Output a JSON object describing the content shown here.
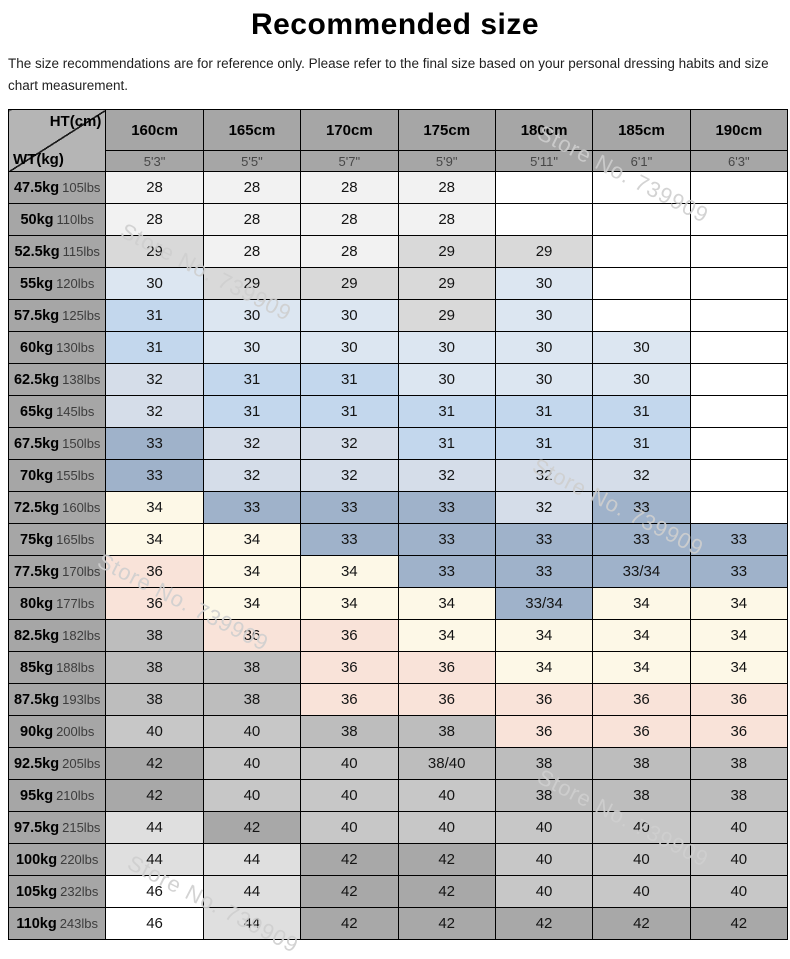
{
  "page": {
    "title": "Recommended size",
    "disclaimer": "The size recommendations are for reference only. Please refer to the final size based on your personal dressing habits and size chart measurement.",
    "watermark_text": "Store No. 739909"
  },
  "chart_data": {
    "type": "table",
    "title": "Recommended size",
    "corner": {
      "height_label": "HT(cm)",
      "weight_label": "WT(kg)"
    },
    "height_columns": [
      {
        "cm": "160cm",
        "ft": "5'3\""
      },
      {
        "cm": "165cm",
        "ft": "5'5\""
      },
      {
        "cm": "170cm",
        "ft": "5'7\""
      },
      {
        "cm": "175cm",
        "ft": "5'9\""
      },
      {
        "cm": "180cm",
        "ft": "5'11\""
      },
      {
        "cm": "185cm",
        "ft": "6'1\""
      },
      {
        "cm": "190cm",
        "ft": "6'3\""
      }
    ],
    "rows": [
      {
        "kg": "47.5kg",
        "lbs": "105lbs",
        "sizes": [
          "28",
          "28",
          "28",
          "28",
          "",
          "",
          ""
        ]
      },
      {
        "kg": "50kg",
        "lbs": "110lbs",
        "sizes": [
          "28",
          "28",
          "28",
          "28",
          "",
          "",
          ""
        ]
      },
      {
        "kg": "52.5kg",
        "lbs": "115lbs",
        "sizes": [
          "29",
          "28",
          "28",
          "29",
          "29",
          "",
          ""
        ]
      },
      {
        "kg": "55kg",
        "lbs": "120lbs",
        "sizes": [
          "30",
          "29",
          "29",
          "29",
          "30",
          "",
          ""
        ]
      },
      {
        "kg": "57.5kg",
        "lbs": "125lbs",
        "sizes": [
          "31",
          "30",
          "30",
          "29",
          "30",
          "",
          ""
        ]
      },
      {
        "kg": "60kg",
        "lbs": "130lbs",
        "sizes": [
          "31",
          "30",
          "30",
          "30",
          "30",
          "30",
          ""
        ]
      },
      {
        "kg": "62.5kg",
        "lbs": "138lbs",
        "sizes": [
          "32",
          "31",
          "31",
          "30",
          "30",
          "30",
          ""
        ]
      },
      {
        "kg": "65kg",
        "lbs": "145lbs",
        "sizes": [
          "32",
          "31",
          "31",
          "31",
          "31",
          "31",
          ""
        ]
      },
      {
        "kg": "67.5kg",
        "lbs": "150lbs",
        "sizes": [
          "33",
          "32",
          "32",
          "31",
          "31",
          "31",
          ""
        ]
      },
      {
        "kg": "70kg",
        "lbs": "155lbs",
        "sizes": [
          "33",
          "32",
          "32",
          "32",
          "32",
          "32",
          ""
        ]
      },
      {
        "kg": "72.5kg",
        "lbs": "160lbs",
        "sizes": [
          "34",
          "33",
          "33",
          "33",
          "32",
          "33",
          ""
        ]
      },
      {
        "kg": "75kg",
        "lbs": "165lbs",
        "sizes": [
          "34",
          "34",
          "33",
          "33",
          "33",
          "33",
          "33"
        ]
      },
      {
        "kg": "77.5kg",
        "lbs": "170lbs",
        "sizes": [
          "36",
          "34",
          "34",
          "33",
          "33",
          "33/34",
          "33"
        ]
      },
      {
        "kg": "80kg",
        "lbs": "177lbs",
        "sizes": [
          "36",
          "34",
          "34",
          "34",
          "33/34",
          "34",
          "34"
        ]
      },
      {
        "kg": "82.5kg",
        "lbs": "182lbs",
        "sizes": [
          "38",
          "36",
          "36",
          "34",
          "34",
          "34",
          "34"
        ]
      },
      {
        "kg": "85kg",
        "lbs": "188lbs",
        "sizes": [
          "38",
          "38",
          "36",
          "36",
          "34",
          "34",
          "34"
        ]
      },
      {
        "kg": "87.5kg",
        "lbs": "193lbs",
        "sizes": [
          "38",
          "38",
          "36",
          "36",
          "36",
          "36",
          "36"
        ]
      },
      {
        "kg": "90kg",
        "lbs": "200lbs",
        "sizes": [
          "40",
          "40",
          "38",
          "38",
          "36",
          "36",
          "36"
        ]
      },
      {
        "kg": "92.5kg",
        "lbs": "205lbs",
        "sizes": [
          "42",
          "40",
          "40",
          "38/40",
          "38",
          "38",
          "38"
        ]
      },
      {
        "kg": "95kg",
        "lbs": "210lbs",
        "sizes": [
          "42",
          "40",
          "40",
          "40",
          "38",
          "38",
          "38"
        ]
      },
      {
        "kg": "97.5kg",
        "lbs": "215lbs",
        "sizes": [
          "44",
          "42",
          "40",
          "40",
          "40",
          "40",
          "40"
        ]
      },
      {
        "kg": "100kg",
        "lbs": "220lbs",
        "sizes": [
          "44",
          "44",
          "42",
          "42",
          "40",
          "40",
          "40"
        ]
      },
      {
        "kg": "105kg",
        "lbs": "232lbs",
        "sizes": [
          "46",
          "44",
          "42",
          "42",
          "40",
          "40",
          "40"
        ]
      },
      {
        "kg": "110kg",
        "lbs": "243lbs",
        "sizes": [
          "46",
          "44",
          "42",
          "42",
          "42",
          "42",
          "42"
        ]
      }
    ]
  },
  "colors": {
    "header_bg": "#a6a6a6",
    "corner_bg": "#b5b5b5",
    "border": "#000000",
    "size_fill": {
      "28": "#f2f2f2",
      "29": "#d9d9d9",
      "30": "#dce6f1",
      "31": "#c3d7ed",
      "32": "#d5dde9",
      "33": "#9fb2ca",
      "33/34": "#9fb2ca",
      "34": "#fdf8e7",
      "36": "#f9e3d9",
      "38": "#bdbdbd",
      "38/40": "#bdbdbd",
      "40": "#c7c7c7",
      "42": "#a8a8a8",
      "44": "#dfdfdf",
      "46": "#ffffff",
      "blank": "#ffffff"
    }
  }
}
